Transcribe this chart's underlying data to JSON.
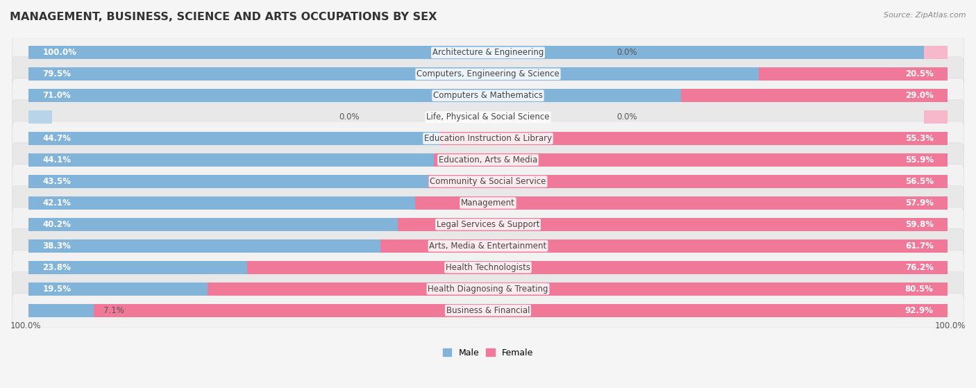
{
  "title": "MANAGEMENT, BUSINESS, SCIENCE AND ARTS OCCUPATIONS BY SEX",
  "source": "Source: ZipAtlas.com",
  "categories": [
    "Architecture & Engineering",
    "Computers, Engineering & Science",
    "Computers & Mathematics",
    "Life, Physical & Social Science",
    "Education Instruction & Library",
    "Education, Arts & Media",
    "Community & Social Service",
    "Management",
    "Legal Services & Support",
    "Arts, Media & Entertainment",
    "Health Technologists",
    "Health Diagnosing & Treating",
    "Business & Financial"
  ],
  "male": [
    100.0,
    79.5,
    71.0,
    0.0,
    44.7,
    44.1,
    43.5,
    42.1,
    40.2,
    38.3,
    23.8,
    19.5,
    7.1
  ],
  "female": [
    0.0,
    20.5,
    29.0,
    0.0,
    55.3,
    55.9,
    56.5,
    57.9,
    59.8,
    61.7,
    76.2,
    80.5,
    92.9
  ],
  "male_color": "#82b3d8",
  "female_color": "#f07898",
  "male_zero_color": "#b8d4e8",
  "female_zero_color": "#f8b8cc",
  "row_color_even": "#f2f2f2",
  "row_color_odd": "#e8e8e8",
  "row_outline": "#dddddd",
  "bg_color": "#f5f5f5",
  "title_fontsize": 11.5,
  "source_fontsize": 8,
  "pct_fontsize": 8.5,
  "cat_fontsize": 8.5,
  "legend_fontsize": 9
}
